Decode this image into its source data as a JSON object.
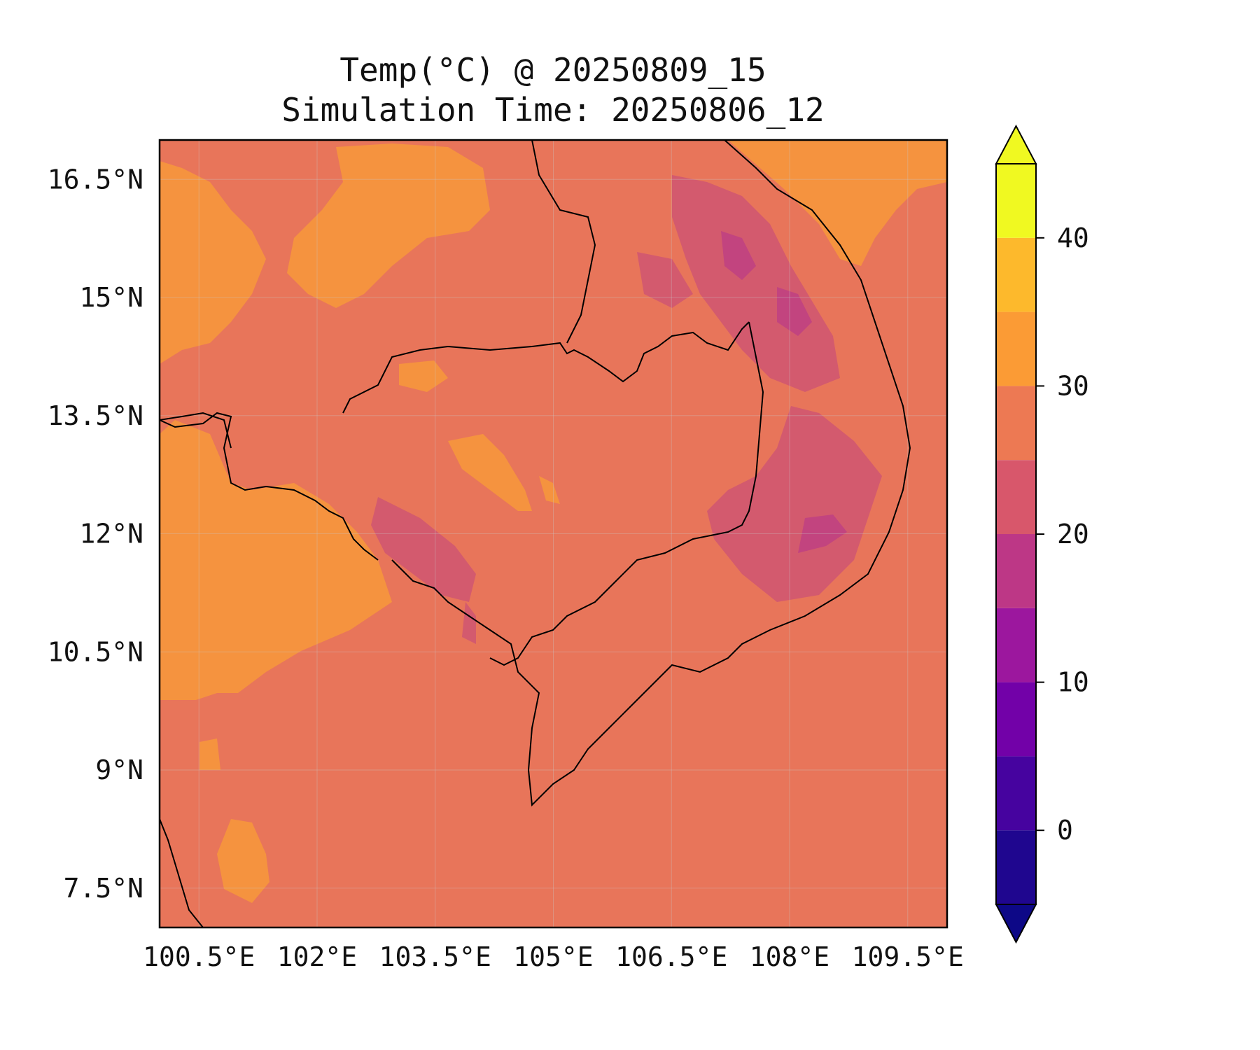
{
  "title": {
    "line1": "Temp(°C) @ 20250809_15",
    "line2": "Simulation Time: 20250806_12"
  },
  "axes": {
    "x_ticks": [
      "100.5°E",
      "102°E",
      "103.5°E",
      "105°E",
      "106.5°E",
      "108°E",
      "109.5°E"
    ],
    "y_ticks": [
      "16.5°N",
      "15°N",
      "13.5°N",
      "12°N",
      "10.5°N",
      "9°N",
      "7.5°N"
    ]
  },
  "colorbar": {
    "tick_labels": [
      "40",
      "30",
      "20",
      "10",
      "0"
    ],
    "range": [
      -5,
      45
    ],
    "step": 5,
    "extend": "both",
    "colors": [
      "#0d0887",
      "#1f068f",
      "#46039f",
      "#7201a8",
      "#9c179e",
      "#bd3786",
      "#d8576b",
      "#ed7953",
      "#fb9b35",
      "#fdb92c",
      "#f0f921"
    ]
  },
  "map": {
    "lon_range": [
      100.0,
      110.0
    ],
    "lat_range": [
      7.0,
      17.0
    ],
    "gridlines": true,
    "base_color": "#e8755a",
    "field_colors": {
      "warm": "#f5933f",
      "mid": "#e8755a",
      "cool": "#d35a6e",
      "cooler": "#c2447f",
      "coolest": "#a72d8f"
    }
  },
  "chart_data": {
    "type": "heatmap",
    "title": "Temp(°C) @ 20250809_15",
    "subtitle": "Simulation Time: 20250806_12",
    "variable": "Temp(°C)",
    "x_ticks": [
      100.5,
      102,
      103.5,
      105,
      106.5,
      108,
      109.5
    ],
    "y_ticks": [
      16.5,
      15,
      13.5,
      12,
      10.5,
      9,
      7.5
    ],
    "xlim": [
      100.0,
      110.0
    ],
    "ylim": [
      7.0,
      17.0
    ],
    "colorbar_ticks": [
      0,
      10,
      20,
      30,
      40
    ],
    "levels": [
      -5,
      0,
      5,
      10,
      15,
      20,
      25,
      30,
      35,
      40,
      45
    ]
  }
}
